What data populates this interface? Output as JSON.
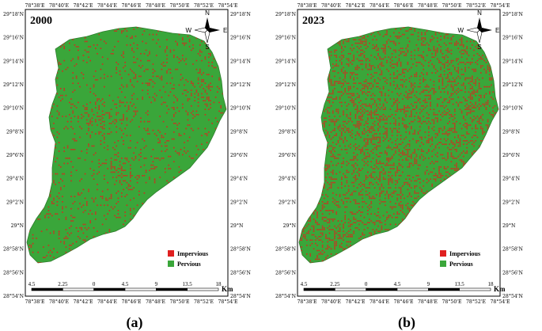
{
  "panels": [
    {
      "id": "a",
      "year": "2000",
      "caption": "(a)",
      "impervious_density": 0.18,
      "top_ticks": [
        "78°38'E",
        "78°40'E",
        "78°42'E",
        "78°44'E",
        "78°46'E",
        "78°48'E",
        "78°50'E",
        "78°52'E",
        "78°54'E"
      ],
      "bottom_ticks": [
        "78°38'E",
        "78°40'E",
        "78°42'E",
        "78°44'E",
        "78°46'E",
        "78°48'E",
        "78°50'E",
        "78°52'E",
        "78°54'E"
      ],
      "left_ticks": [
        "29°18'N",
        "29°16'N",
        "29°14'N",
        "29°12'N",
        "29°10'N",
        "29°8'N",
        "29°6'N",
        "29°4'N",
        "29°2'N",
        "29°N",
        "28°58'N",
        "28°56'N",
        "28°54'N"
      ],
      "right_ticks": [
        "29°18'N",
        "29°16'N",
        "29°14'N",
        "29°12'N",
        "29°10'N",
        "29°8'N",
        "29°6'N",
        "29°4'N",
        "29°2'N",
        "29°N",
        "28°58'N",
        "28°56'N",
        "28°54'N"
      ]
    },
    {
      "id": "b",
      "year": "2023",
      "caption": "(b)",
      "impervious_density": 0.45,
      "top_ticks": [
        "78°38'E",
        "78°40'E",
        "78°42'E",
        "78°44'E",
        "78°46'E",
        "78°48'E",
        "78°50'E",
        "78°52'E",
        "78°54'E"
      ],
      "bottom_ticks": [
        "78°38'E",
        "78°40'E",
        "78°42'E",
        "78°44'E",
        "78°46'E",
        "78°48'E",
        "78°50'E",
        "78°52'E",
        "78°54'E"
      ],
      "left_ticks": [
        "29°18'N",
        "29°16'N",
        "29°14'N",
        "29°12'N",
        "29°10'N",
        "29°8'N",
        "29°6'N",
        "29°4'N",
        "29°2'N",
        "29°N",
        "28°58'N",
        "28°56'N",
        "28°54'N"
      ],
      "right_ticks": [
        "29°18'N",
        "29°16'N",
        "29°14'N",
        "29°12'N",
        "29°10'N",
        "29°8'N",
        "29°6'N",
        "29°4'N",
        "29°2'N",
        "29°N",
        "28°58'N",
        "28°56'N",
        "28°54'N"
      ]
    }
  ],
  "legend": [
    {
      "label": "Impervious",
      "color": "#e02020"
    },
    {
      "label": "Pervious",
      "color": "#3aa63a"
    }
  ],
  "scale_bar": {
    "labels": [
      "4.5",
      "2.25",
      "0",
      "4.5",
      "9",
      "13.5",
      "18"
    ],
    "unit": "Km"
  },
  "north_arrow": {
    "n": "N",
    "s": "S",
    "e": "E",
    "w": "W"
  },
  "colors": {
    "pervious": "#3aa63a",
    "impervious": "#d42a1e",
    "frame": "#000000"
  }
}
